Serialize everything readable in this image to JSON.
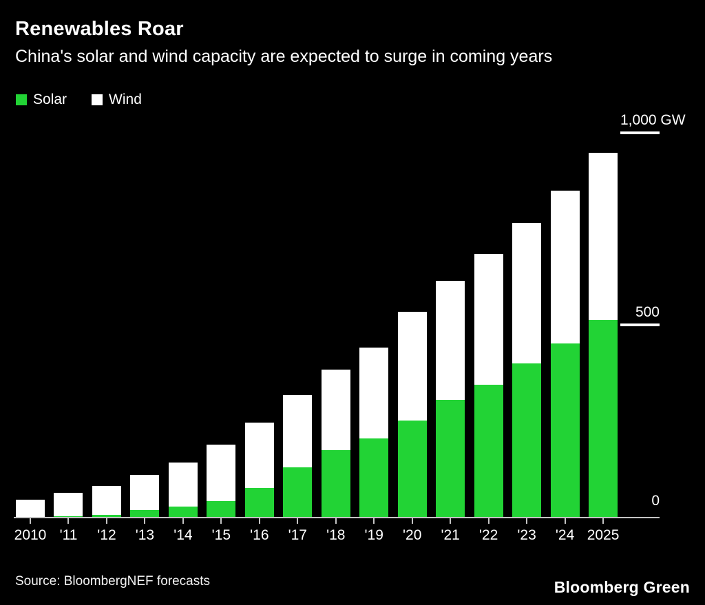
{
  "header": {
    "title": "Renewables Roar",
    "subtitle": "China's solar and wind capacity are expected to surge in coming years"
  },
  "legend": {
    "items": [
      {
        "label": "Solar",
        "color": "#22d335"
      },
      {
        "label": "Wind",
        "color": "#ffffff"
      }
    ]
  },
  "chart_data": {
    "type": "bar",
    "stacked": true,
    "title": "Renewables Roar",
    "subtitle": "China's solar and wind capacity are expected to surge in coming years",
    "unit": "GW",
    "categories": [
      "2010",
      "'11",
      "'12",
      "'13",
      "'14",
      "'15",
      "'16",
      "'17",
      "'18",
      "'19",
      "'20",
      "'21",
      "'22",
      "'23",
      "'24",
      "2025"
    ],
    "series": [
      {
        "name": "Solar",
        "color": "#22d335",
        "values": [
          1,
          3,
          7,
          19,
          28,
          43,
          77,
          130,
          175,
          205,
          253,
          306,
          346,
          400,
          452,
          513
        ]
      },
      {
        "name": "Wind",
        "color": "#ffffff",
        "values": [
          45,
          62,
          76,
          92,
          115,
          146,
          169,
          188,
          210,
          236,
          282,
          310,
          340,
          365,
          397,
          435
        ]
      }
    ],
    "totals": [
      46,
      65,
      83,
      111,
      143,
      189,
      246,
      318,
      385,
      441,
      535,
      616,
      686,
      765,
      849,
      948
    ],
    "y_axis": {
      "max": 1000,
      "ticks": [
        {
          "value": 1000,
          "label": "1,000 GW"
        },
        {
          "value": 500,
          "label": "500"
        },
        {
          "value": 0,
          "label": "0"
        }
      ]
    },
    "grid": false,
    "legend_position": "top-left",
    "colors": {
      "background": "#000000",
      "axis": "#c4c4c4",
      "text": "#ffffff"
    }
  },
  "footer": {
    "source": "Source: BloombergNEF forecasts",
    "brand": "Bloomberg Green"
  }
}
